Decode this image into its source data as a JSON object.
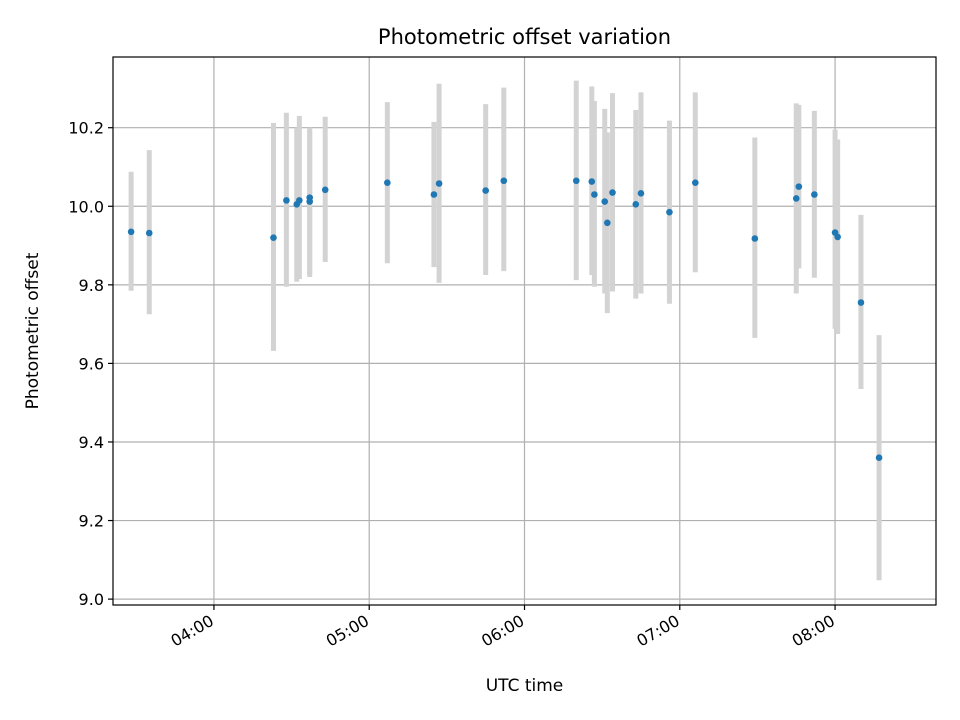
{
  "chart_data": {
    "type": "scatter",
    "title": "Photometric offset variation",
    "xlabel": "UTC time",
    "ylabel": "Photometric offset",
    "x_unit": "UTC time (HH:MM)",
    "xlim": [
      "03:21",
      "08:39"
    ],
    "ylim": [
      8.985,
      10.38
    ],
    "x_ticks": [
      "04:00",
      "05:00",
      "06:00",
      "07:00",
      "08:00"
    ],
    "y_ticks": [
      "9.0",
      "9.2",
      "9.4",
      "9.6",
      "9.8",
      "10.0",
      "10.2"
    ],
    "grid": true,
    "colors": {
      "point": "#1f77b4",
      "errorbar": "#d3d3d3",
      "grid": "#b0b0b0"
    },
    "series": [
      {
        "points": [
          {
            "x": "03:28",
            "y": 9.935,
            "ylo": 9.785,
            "yhi": 10.088
          },
          {
            "x": "03:35",
            "y": 9.932,
            "ylo": 9.725,
            "yhi": 10.143
          },
          {
            "x": "04:23",
            "y": 9.92,
            "ylo": 9.632,
            "yhi": 10.212
          },
          {
            "x": "04:28",
            "y": 10.015,
            "ylo": 9.795,
            "yhi": 10.238
          },
          {
            "x": "04:32",
            "y": 10.005,
            "ylo": 9.808,
            "yhi": 10.2
          },
          {
            "x": "04:33",
            "y": 10.015,
            "ylo": 9.815,
            "yhi": 10.23
          },
          {
            "x": "04:37",
            "y": 10.022,
            "ylo": 9.825,
            "yhi": 10.195
          },
          {
            "x": "04:37",
            "y": 10.012,
            "ylo": 9.82,
            "yhi": 10.2
          },
          {
            "x": "04:43",
            "y": 10.042,
            "ylo": 9.858,
            "yhi": 10.228
          },
          {
            "x": "05:07",
            "y": 10.06,
            "ylo": 9.855,
            "yhi": 10.265
          },
          {
            "x": "05:25",
            "y": 10.03,
            "ylo": 9.845,
            "yhi": 10.215
          },
          {
            "x": "05:27",
            "y": 10.058,
            "ylo": 9.805,
            "yhi": 10.312
          },
          {
            "x": "05:45",
            "y": 10.04,
            "ylo": 9.825,
            "yhi": 10.26
          },
          {
            "x": "05:52",
            "y": 10.065,
            "ylo": 9.835,
            "yhi": 10.302
          },
          {
            "x": "06:20",
            "y": 10.065,
            "ylo": 9.812,
            "yhi": 10.32
          },
          {
            "x": "06:26",
            "y": 10.063,
            "ylo": 9.825,
            "yhi": 10.305
          },
          {
            "x": "06:27",
            "y": 10.03,
            "ylo": 9.795,
            "yhi": 10.268
          },
          {
            "x": "06:31",
            "y": 10.012,
            "ylo": 9.778,
            "yhi": 10.248
          },
          {
            "x": "06:32",
            "y": 9.958,
            "ylo": 9.728,
            "yhi": 10.188
          },
          {
            "x": "06:34",
            "y": 10.035,
            "ylo": 9.783,
            "yhi": 10.288
          },
          {
            "x": "06:43",
            "y": 10.005,
            "ylo": 9.765,
            "yhi": 10.245
          },
          {
            "x": "06:45",
            "y": 10.033,
            "ylo": 9.778,
            "yhi": 10.29
          },
          {
            "x": "06:56",
            "y": 9.985,
            "ylo": 9.752,
            "yhi": 10.218
          },
          {
            "x": "07:06",
            "y": 10.06,
            "ylo": 9.832,
            "yhi": 10.29
          },
          {
            "x": "07:29",
            "y": 9.918,
            "ylo": 9.665,
            "yhi": 10.175
          },
          {
            "x": "07:45",
            "y": 10.02,
            "ylo": 9.778,
            "yhi": 10.262
          },
          {
            "x": "07:46",
            "y": 10.05,
            "ylo": 9.842,
            "yhi": 10.258
          },
          {
            "x": "07:52",
            "y": 10.03,
            "ylo": 9.818,
            "yhi": 10.243
          },
          {
            "x": "08:00",
            "y": 9.933,
            "ylo": 9.688,
            "yhi": 10.195
          },
          {
            "x": "08:01",
            "y": 9.922,
            "ylo": 9.675,
            "yhi": 10.17
          },
          {
            "x": "08:10",
            "y": 9.755,
            "ylo": 9.535,
            "yhi": 9.978
          },
          {
            "x": "08:17",
            "y": 9.36,
            "ylo": 9.048,
            "yhi": 9.672
          }
        ]
      }
    ]
  }
}
